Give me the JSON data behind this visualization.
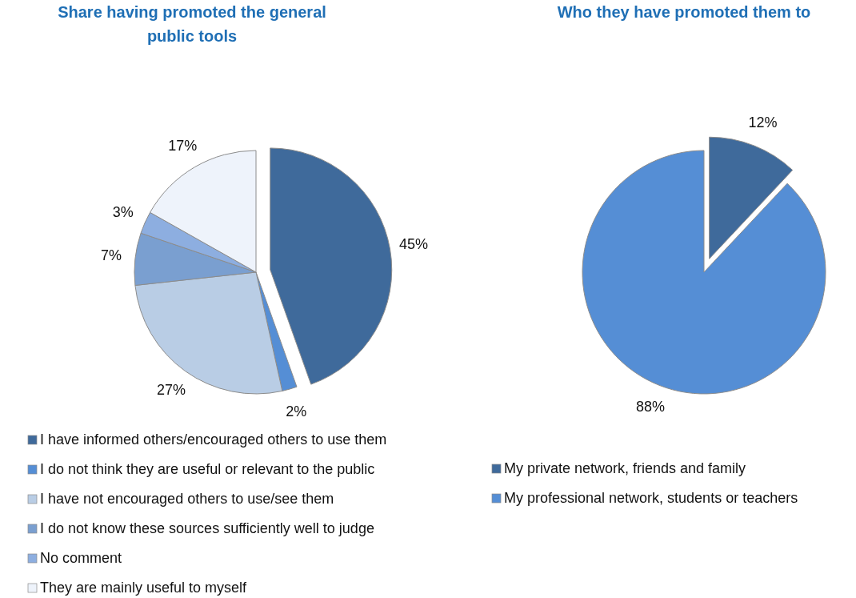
{
  "chart_data": [
    {
      "type": "pie",
      "title": "Share having promoted the general public tools",
      "categories": [
        "I have informed others/encouraged others to use them",
        "I do not think they are useful or relevant to the public",
        "I have not encouraged others to use/see them",
        "I do not know these sources sufficiently well to judge",
        "No comment",
        "They are mainly useful to myself"
      ],
      "values": [
        45,
        2,
        27,
        7,
        3,
        17
      ],
      "value_labels": [
        "45%",
        "2%",
        "27%",
        "7%",
        "3%",
        "17%"
      ],
      "colors": [
        "#3f6a9b",
        "#558ed5",
        "#b9cde5",
        "#7a9fd0",
        "#8daee0",
        "#eef3fb"
      ],
      "legend": "bottom"
    },
    {
      "type": "pie",
      "title": "Who they have promoted them to",
      "categories": [
        "My private network, friends and family",
        "My professional network, students or teachers"
      ],
      "values": [
        12,
        88
      ],
      "value_labels": [
        "12%",
        "88%"
      ],
      "colors": [
        "#3f6a9b",
        "#558ed5"
      ],
      "legend": "bottom"
    }
  ]
}
